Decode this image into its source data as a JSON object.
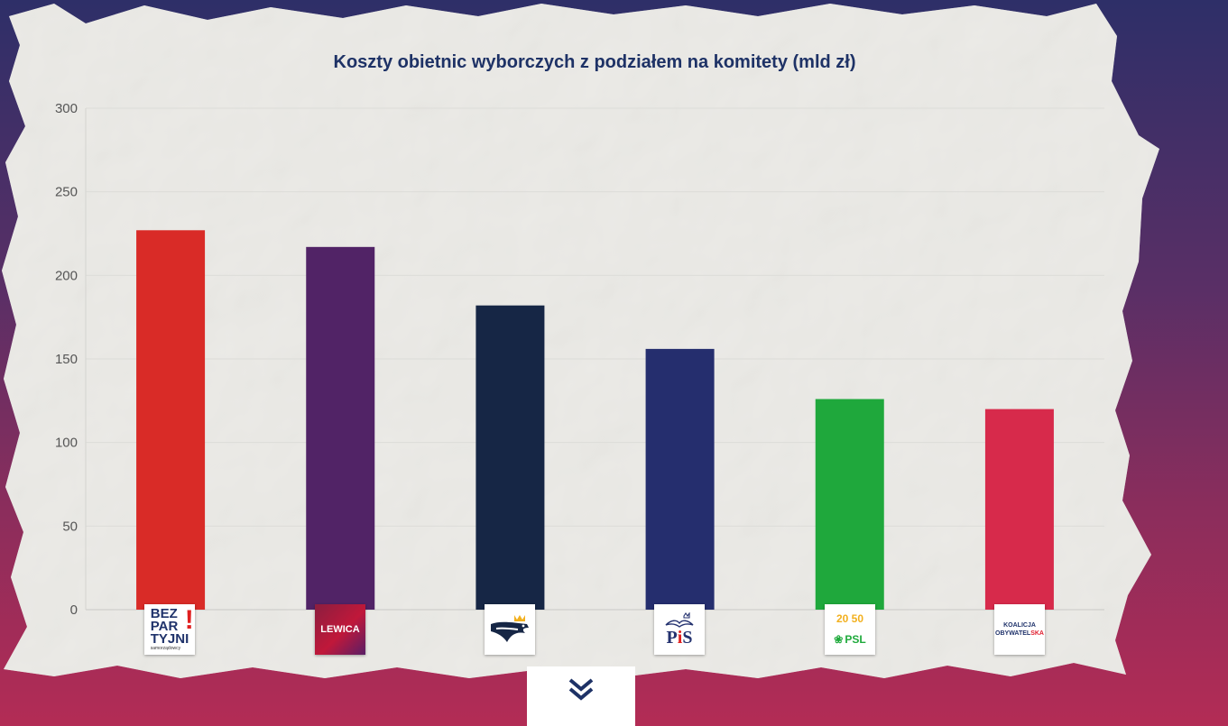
{
  "chart_data": {
    "type": "bar",
    "title": "Koszty obietnic wyborczych z podziałem na komitety (mld zł)",
    "xlabel": "",
    "ylabel": "",
    "ylim": [
      0,
      300
    ],
    "yticks": [
      0,
      50,
      100,
      150,
      200,
      250,
      300
    ],
    "ytick_labels": [
      "0",
      "50",
      "100",
      "150",
      "200",
      "250",
      "300"
    ],
    "grid": true,
    "categories": [
      "Bezpartyjni Samorządowcy",
      "Lewica",
      "Konfederacja",
      "PiS",
      "PSL",
      "Koalicja Obywatelska"
    ],
    "values": [
      227,
      217,
      182,
      156,
      126,
      120
    ],
    "colors": [
      "#d92b27",
      "#512366",
      "#162645",
      "#252e6e",
      "#1fa83c",
      "#d72a4b"
    ]
  },
  "logos": {
    "bez": {
      "line1": "BEZ",
      "line2": "PAR",
      "line3": "TYJNI",
      "mark": "!",
      "sub": "samorządowcy"
    },
    "lewica": {
      "text": "LEWICA"
    },
    "konfederacja": {
      "icon": "crowned-eagle-icon"
    },
    "pis": {
      "p": "P",
      "i": "i",
      "s": "S"
    },
    "psl": {
      "year": "20 50",
      "text": "PSL"
    },
    "ko": {
      "line1": "KOALICJA",
      "line2a": "OBYWATEL",
      "line2b": "SKA"
    }
  },
  "scroll": {
    "icon": "double-chevron-down-icon"
  }
}
